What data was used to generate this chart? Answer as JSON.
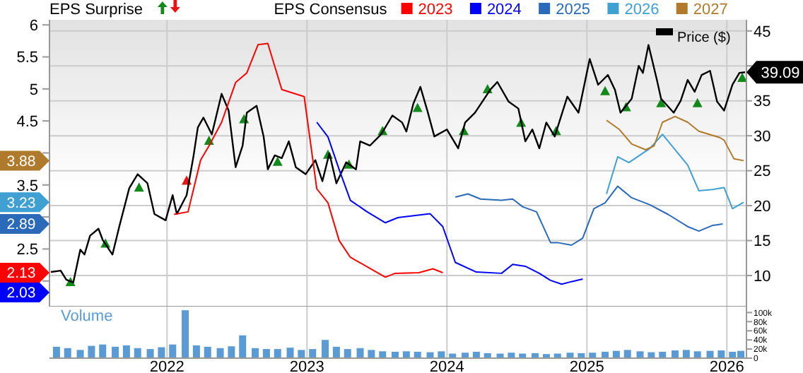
{
  "chart_data": [
    {
      "type": "line",
      "legend": "top right",
      "legend_title": "EPS Consensus",
      "annotations": [
        "EPS Surprise",
        "2.13",
        "2.03",
        "2.89",
        "3.23",
        "3.88"
      ],
      "grid": true,
      "tick_labels": "y",
      "xlim": [
        2021.16,
        2026.14
      ],
      "xticks": [
        2022,
        2023,
        2024,
        2025,
        2026
      ],
      "ylim": [
        1.6,
        6.08
      ],
      "yticks": [
        {
          "value": 2,
          "label": null
        },
        2.5,
        {
          "value": 3,
          "label": null
        },
        3.5,
        {
          "value": 4,
          "label": null
        },
        4.5,
        5,
        5.5,
        6
      ],
      "y2lim": [
        5.55,
        46.6
      ],
      "y2ticks": [
        10,
        15,
        20,
        25,
        30,
        35,
        {
          "value": 40,
          "label": null
        },
        45
      ],
      "series": [
        {
          "name": "Price ($)",
          "color": "#000000",
          "axis": "y2",
          "x": [
            2021.17,
            2021.24,
            2021.28,
            2021.33,
            2021.38,
            2021.41,
            2021.45,
            2021.51,
            2021.54,
            2021.61,
            2021.66,
            2021.73,
            2021.79,
            2021.86,
            2021.91,
            2021.99,
            2022.04,
            2022.07,
            2022.14,
            2022.19,
            2022.22,
            2022.26,
            2022.32,
            2022.39,
            2022.44,
            2022.49,
            2022.54,
            2022.57,
            2022.64,
            2022.69,
            2022.72,
            2022.77,
            2022.82,
            2022.87,
            2022.92,
            2022.99,
            2023.06,
            2023.11,
            2023.16,
            2023.21,
            2023.28,
            2023.35,
            2023.38,
            2023.45,
            2023.53,
            2023.61,
            2023.68,
            2023.71,
            2023.76,
            2023.81,
            2023.86,
            2023.91,
            2024.0,
            2024.08,
            2024.13,
            2024.2,
            2024.31,
            2024.36,
            2024.44,
            2024.51,
            2024.56,
            2024.61,
            2024.66,
            2024.71,
            2024.77,
            2024.86,
            2024.94,
            2025.02,
            2025.08,
            2025.15,
            2025.2,
            2025.24,
            2025.32,
            2025.37,
            2025.4,
            2025.44,
            2025.5,
            2025.53,
            2025.62,
            2025.67,
            2025.72,
            2025.77,
            2025.82,
            2025.88,
            2025.93,
            2025.98,
            2026.04,
            2026.09,
            2026.13
          ],
          "values": [
            10.5,
            10.7,
            9.4,
            9.0,
            13.7,
            13.0,
            15.7,
            16.7,
            15.1,
            13.0,
            17.1,
            22.5,
            24.5,
            23.2,
            18.8,
            17.9,
            21.5,
            18.8,
            21.5,
            27.2,
            31.2,
            32.6,
            30.2,
            36.0,
            33.6,
            25.5,
            28.6,
            33.3,
            34.3,
            29.9,
            25.2,
            27.2,
            26.8,
            29.2,
            25.5,
            24.5,
            26.5,
            23.5,
            27.5,
            23.2,
            26.2,
            25.2,
            29.2,
            28.6,
            30.2,
            32.9,
            31.9,
            30.6,
            34.6,
            37.0,
            33.6,
            29.9,
            30.9,
            28.2,
            31.9,
            33.3,
            36.6,
            37.7,
            34.9,
            33.9,
            29.2,
            30.9,
            28.2,
            31.9,
            29.9,
            35.6,
            33.3,
            41.0,
            37.3,
            38.7,
            36.6,
            33.3,
            35.3,
            40.0,
            39.0,
            43.0,
            38.0,
            35.3,
            33.3,
            35.0,
            38.0,
            36.3,
            38.7,
            39.3,
            34.9,
            33.6,
            37.3,
            39.0,
            39.09
          ],
          "value_labels": [
            null,
            null,
            null,
            null,
            null,
            null,
            null,
            null,
            null,
            null,
            null,
            null,
            null,
            null,
            null,
            null,
            null,
            null,
            null,
            null,
            null,
            null,
            null,
            null,
            null,
            null,
            null,
            null,
            null,
            null,
            null,
            null,
            null,
            null,
            null,
            null,
            null,
            null,
            null,
            null,
            null,
            null,
            null,
            null,
            null,
            null,
            null,
            null,
            null,
            null,
            null,
            null,
            null,
            null,
            null,
            null,
            null,
            null,
            null,
            null,
            null,
            null,
            null,
            null,
            null,
            null,
            null,
            null,
            null,
            null,
            null,
            null,
            null,
            null,
            null,
            null,
            null,
            null,
            null,
            null,
            null,
            null,
            null,
            null,
            null,
            null,
            null,
            null,
            "39.09"
          ]
        },
        {
          "name": "2023",
          "color": "#ff0000",
          "x": [
            2022.05,
            2022.15,
            2022.24,
            2022.3,
            2022.39,
            2022.49,
            2022.57,
            2022.65,
            2022.72,
            2022.82,
            2022.98,
            2023.07,
            2023.15,
            2023.23,
            2023.31,
            2023.56,
            2023.63,
            2023.8,
            2023.9,
            2023.97
          ],
          "values": [
            3.04,
            3.08,
            3.89,
            4.11,
            4.48,
            5.1,
            5.25,
            5.69,
            5.71,
            4.99,
            4.88,
            3.44,
            3.22,
            2.63,
            2.37,
            2.06,
            2.12,
            2.13,
            2.19,
            2.13
          ]
        },
        {
          "name": "2024",
          "color": "#0000ff",
          "x": [
            2023.07,
            2023.15,
            2023.23,
            2023.31,
            2023.43,
            2023.56,
            2023.65,
            2023.88,
            2023.97,
            2024.06,
            2024.21,
            2024.39,
            2024.47,
            2024.56,
            2024.66,
            2024.74,
            2024.82,
            2024.89,
            2024.97
          ],
          "values": [
            4.48,
            4.25,
            3.74,
            3.26,
            3.08,
            2.91,
            2.99,
            3.05,
            2.85,
            2.29,
            2.14,
            2.12,
            2.26,
            2.23,
            2.12,
            2.01,
            1.95,
            1.99,
            2.03
          ]
        },
        {
          "name": "2025",
          "color": "#2a6ab8",
          "x": [
            2024.06,
            2024.15,
            2024.24,
            2024.39,
            2024.47,
            2024.54,
            2024.64,
            2024.74,
            2024.79,
            2024.89,
            2024.97,
            2025.05,
            2025.13,
            2025.22,
            2025.32,
            2025.45,
            2025.58,
            2025.72,
            2025.8,
            2025.9,
            2025.97
          ],
          "values": [
            3.31,
            3.36,
            3.28,
            3.26,
            3.28,
            3.16,
            3.08,
            2.6,
            2.6,
            2.56,
            2.67,
            3.13,
            3.22,
            3.48,
            3.3,
            3.19,
            3.04,
            2.85,
            2.78,
            2.87,
            2.89
          ]
        },
        {
          "name": "2026",
          "color": "#40a0d2",
          "x": [
            2025.14,
            2025.22,
            2025.3,
            2025.45,
            2025.54,
            2025.72,
            2025.8,
            2025.9,
            2025.98,
            2026.04,
            2026.12
          ],
          "values": [
            3.36,
            3.94,
            3.85,
            4.07,
            4.29,
            3.81,
            3.41,
            3.43,
            3.46,
            3.13,
            3.23
          ]
        },
        {
          "name": "2027",
          "color": "#b07a2c",
          "x": [
            2025.14,
            2025.23,
            2025.32,
            2025.42,
            2025.48,
            2025.54,
            2025.63,
            2025.72,
            2025.8,
            2025.95,
            2025.98,
            2026.05,
            2026.12
          ],
          "values": [
            4.51,
            4.37,
            4.14,
            4.05,
            4.11,
            4.48,
            4.57,
            4.48,
            4.34,
            4.24,
            4.2,
            3.91,
            3.88
          ]
        },
        {
          "type": "scatter",
          "marker": "triangle",
          "color": "#13891a",
          "axis": "y2",
          "x": [
            2021.31,
            2021.56,
            2021.8,
            2022.3,
            2022.55,
            2022.79,
            2023.15,
            2023.3,
            2023.54,
            2023.79,
            2024.12,
            2024.29,
            2024.53,
            2024.78,
            2025.13,
            2025.28,
            2025.53,
            2025.79,
            2026.11
          ],
          "values": [
            9.0,
            14.5,
            22.5,
            29.2,
            32.3,
            26.2,
            27.2,
            25.8,
            30.6,
            33.9,
            30.6,
            36.6,
            31.8,
            30.6,
            36.3,
            34.0,
            34.6,
            34.6,
            38.2
          ]
        },
        {
          "type": "scatter",
          "marker": "triangle",
          "color": "#ee1111",
          "axis": "y2",
          "x": [
            2022.14
          ],
          "values": [
            23.5
          ]
        }
      ]
    },
    {
      "type": "bar",
      "grid": "x",
      "xlim": [
        2021.16,
        2026.14
      ],
      "xticks": [
        2022,
        2023,
        2024,
        2025,
        2026
      ],
      "y2lim": [
        0,
        113000
      ],
      "y2ticks": [
        0,
        {
          "value": 20000,
          "label": "20k"
        },
        {
          "value": 40000,
          "label": "40k"
        },
        {
          "value": 60000,
          "label": "60k"
        },
        {
          "value": 80000,
          "label": "80k"
        },
        {
          "value": 100000,
          "label": "100k"
        }
      ],
      "series": [
        {
          "name": "Volume",
          "color": "#5b9bd5",
          "axis": "y2",
          "x": [
            2021.21,
            2021.29,
            2021.38,
            2021.46,
            2021.54,
            2021.63,
            2021.71,
            2021.79,
            2021.88,
            2021.96,
            2022.04,
            2022.13,
            2022.21,
            2022.29,
            2022.38,
            2022.46,
            2022.54,
            2022.63,
            2022.71,
            2022.79,
            2022.88,
            2022.96,
            2023.04,
            2023.13,
            2023.21,
            2023.29,
            2023.38,
            2023.46,
            2023.54,
            2023.63,
            2023.71,
            2023.79,
            2023.88,
            2023.96,
            2024.04,
            2024.13,
            2024.21,
            2024.29,
            2024.38,
            2024.46,
            2024.54,
            2024.63,
            2024.71,
            2024.79,
            2024.88,
            2024.96,
            2025.04,
            2025.13,
            2025.21,
            2025.29,
            2025.38,
            2025.46,
            2025.54,
            2025.63,
            2025.71,
            2025.79,
            2025.88,
            2025.96,
            2026.04,
            2026.1
          ],
          "values": [
            25000,
            22000,
            18000,
            27000,
            30000,
            25000,
            28000,
            22000,
            20000,
            24000,
            30000,
            105000,
            28000,
            25000,
            22000,
            26000,
            50000,
            22000,
            20000,
            20000,
            23000,
            18000,
            20000,
            40000,
            25000,
            20000,
            22000,
            18000,
            15000,
            14000,
            15000,
            14000,
            13000,
            15000,
            10000,
            12000,
            14000,
            11000,
            10000,
            12000,
            10000,
            11000,
            9000,
            10000,
            12000,
            11000,
            12000,
            14000,
            16000,
            18000,
            15000,
            13000,
            14000,
            17000,
            18000,
            15000,
            16000,
            17000,
            14000,
            16000
          ]
        }
      ]
    }
  ]
}
